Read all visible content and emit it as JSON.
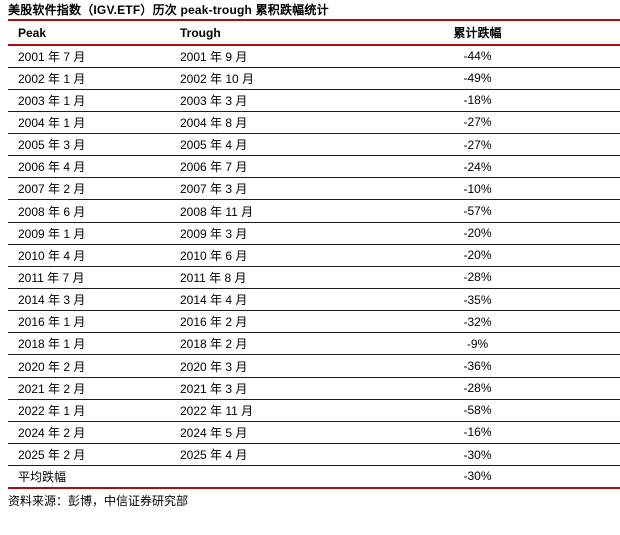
{
  "title": "美股软件指数（IGV.ETF）历次 peak-trough 累积跌幅统计",
  "source": "资料来源：彭博，中信证券研究部",
  "colors": {
    "accent_red": "#a50f0f",
    "row_line": "#1c1c1c",
    "text": "#000000",
    "background": "#ffffff"
  },
  "table": {
    "columns": [
      "Peak",
      "Trough",
      "累计跌幅"
    ],
    "rows": [
      [
        "2001 年 7 月",
        "2001 年 9 月",
        "-44%"
      ],
      [
        "2002 年 1 月",
        "2002 年 10 月",
        "-49%"
      ],
      [
        "2003 年 1 月",
        "2003 年 3 月",
        "-18%"
      ],
      [
        "2004 年 1 月",
        "2004 年 8 月",
        "-27%"
      ],
      [
        "2005 年 3 月",
        "2005 年 4 月",
        "-27%"
      ],
      [
        "2006 年 4 月",
        "2006 年 7 月",
        "-24%"
      ],
      [
        "2007 年 2 月",
        "2007 年 3 月",
        "-10%"
      ],
      [
        "2008 年 6 月",
        "2008 年 11 月",
        "-57%"
      ],
      [
        "2009 年 1 月",
        "2009 年 3 月",
        "-20%"
      ],
      [
        "2010 年 4 月",
        "2010 年 6 月",
        "-20%"
      ],
      [
        "2011 年 7 月",
        "2011 年 8 月",
        "-28%"
      ],
      [
        "2014 年 3 月",
        "2014 年 4 月",
        "-35%"
      ],
      [
        "2016 年 1 月",
        "2016 年 2 月",
        "-32%"
      ],
      [
        "2018 年 1 月",
        "2018 年 2 月",
        "-9%"
      ],
      [
        "2020 年 2 月",
        "2020 年 3 月",
        "-36%"
      ],
      [
        "2021 年 2 月",
        "2021 年 3 月",
        "-28%"
      ],
      [
        "2022 年 1 月",
        "2022 年 11 月",
        "-58%"
      ],
      [
        "2024 年 2 月",
        "2024 年 5 月",
        "-16%"
      ],
      [
        "2025 年 2 月",
        "2025 年 4 月",
        "-30%"
      ]
    ],
    "summary": {
      "label": "平均跌幅",
      "value": "-30%"
    }
  }
}
